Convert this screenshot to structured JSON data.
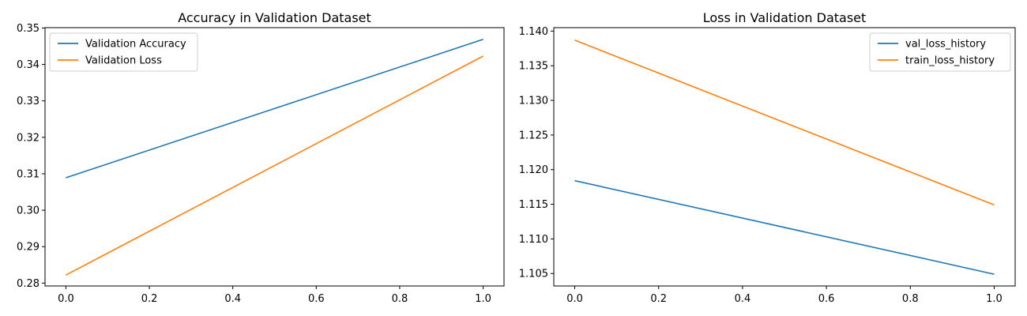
{
  "chart_data": [
    {
      "type": "line",
      "title": "Accuracy in Validation Dataset",
      "xlabel": "",
      "ylabel": "",
      "xlim": [
        -0.05,
        1.05
      ],
      "ylim": [
        0.2792,
        0.3501
      ],
      "xticks": [
        0.0,
        0.2,
        0.4,
        0.6,
        0.8,
        1.0
      ],
      "xtick_labels": [
        "0.0",
        "0.2",
        "0.4",
        "0.6",
        "0.8",
        "1.0"
      ],
      "yticks": [
        0.28,
        0.29,
        0.3,
        0.31,
        0.32,
        0.33,
        0.34,
        0.35
      ],
      "ytick_labels": [
        "0.28",
        "0.29",
        "0.30",
        "0.31",
        "0.32",
        "0.33",
        "0.34",
        "0.35"
      ],
      "grid": false,
      "legend_position": "upper-left",
      "series": [
        {
          "name": "Validation Accuracy",
          "color": "#1f77b4",
          "x": [
            0,
            1
          ],
          "y": [
            0.3089,
            0.3469
          ]
        },
        {
          "name": "Validation Loss",
          "color": "#ff7f0e",
          "x": [
            0,
            1
          ],
          "y": [
            0.2822,
            0.3423
          ]
        }
      ]
    },
    {
      "type": "line",
      "title": "Loss in Validation Dataset",
      "xlabel": "",
      "ylabel": "",
      "xlim": [
        -0.05,
        1.05
      ],
      "ylim": [
        1.1032,
        1.1405
      ],
      "xticks": [
        0.0,
        0.2,
        0.4,
        0.6,
        0.8,
        1.0
      ],
      "xtick_labels": [
        "0.0",
        "0.2",
        "0.4",
        "0.6",
        "0.8",
        "1.0"
      ],
      "yticks": [
        1.105,
        1.11,
        1.115,
        1.12,
        1.125,
        1.13,
        1.135,
        1.14
      ],
      "ytick_labels": [
        "1.105",
        "1.110",
        "1.115",
        "1.120",
        "1.125",
        "1.130",
        "1.135",
        "1.140"
      ],
      "grid": false,
      "legend_position": "upper-right",
      "series": [
        {
          "name": "val_loss_history",
          "color": "#1f77b4",
          "x": [
            0,
            1
          ],
          "y": [
            1.1184,
            1.1049
          ]
        },
        {
          "name": "train_loss_history",
          "color": "#ff7f0e",
          "x": [
            0,
            1
          ],
          "y": [
            1.1387,
            1.1149
          ]
        }
      ]
    }
  ]
}
